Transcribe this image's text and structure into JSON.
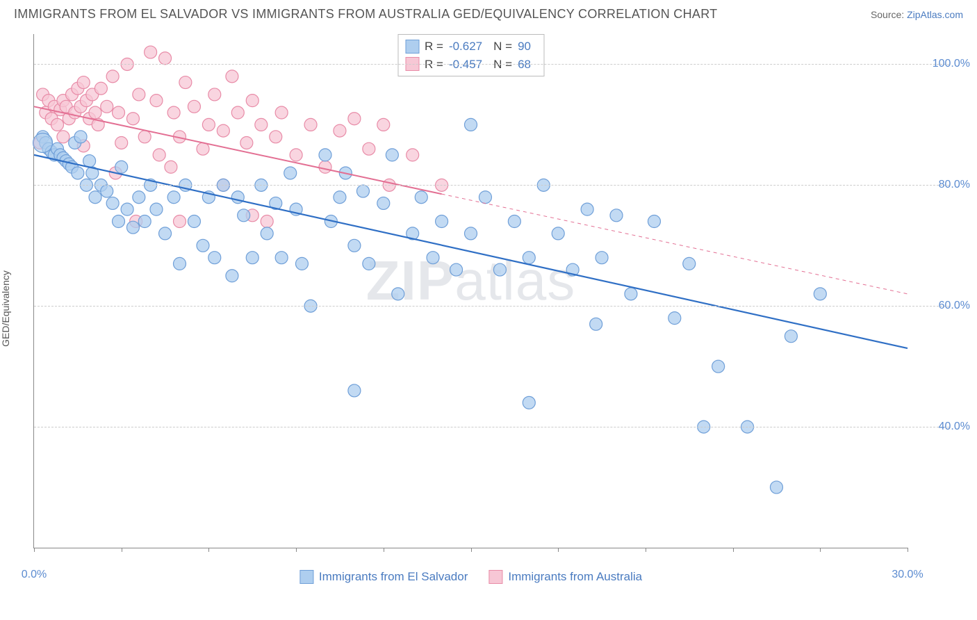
{
  "title": "IMMIGRANTS FROM EL SALVADOR VS IMMIGRANTS FROM AUSTRALIA GED/EQUIVALENCY CORRELATION CHART",
  "source_prefix": "Source: ",
  "source_name": "ZipAtlas.com",
  "y_axis_label": "GED/Equivalency",
  "watermark_bold": "ZIP",
  "watermark_rest": "atlas",
  "chart": {
    "type": "scatter",
    "xlim": [
      0,
      30
    ],
    "ylim": [
      20,
      105
    ],
    "x_ticks": [
      0,
      3,
      6,
      9,
      12,
      15,
      18,
      21,
      24,
      27,
      30
    ],
    "x_tick_labels": {
      "0": "0.0%",
      "30": "30.0%"
    },
    "y_ticks": [
      40,
      60,
      80,
      100
    ],
    "y_tick_labels": {
      "40": "40.0%",
      "60": "60.0%",
      "80": "80.0%",
      "100": "100.0%"
    },
    "background_color": "#ffffff",
    "grid_color": "#cccccc",
    "axis_color": "#888888",
    "marker_radius": 9,
    "marker_stroke_width": 1.2,
    "series": [
      {
        "id": "el_salvador",
        "label": "Immigrants from El Salvador",
        "fill_color": "#aeceef",
        "stroke_color": "#6f9fd8",
        "line_color": "#2f6fc5",
        "line_width": 2.2,
        "R": "-0.627",
        "N": "90",
        "trend": {
          "x1": 0,
          "y1": 85,
          "x2": 30,
          "y2": 53,
          "dash_from_x": null
        },
        "points": [
          [
            0.3,
            88
          ],
          [
            0.4,
            87
          ],
          [
            0.5,
            86
          ],
          [
            0.6,
            85.5
          ],
          [
            0.7,
            85
          ],
          [
            0.8,
            86
          ],
          [
            0.9,
            85
          ],
          [
            1.0,
            84.5
          ],
          [
            1.1,
            84
          ],
          [
            1.2,
            83.5
          ],
          [
            1.3,
            83
          ],
          [
            1.4,
            87
          ],
          [
            1.5,
            82
          ],
          [
            1.6,
            88
          ],
          [
            1.8,
            80
          ],
          [
            1.9,
            84
          ],
          [
            2.0,
            82
          ],
          [
            2.1,
            78
          ],
          [
            2.3,
            80
          ],
          [
            2.5,
            79
          ],
          [
            2.7,
            77
          ],
          [
            2.9,
            74
          ],
          [
            3.0,
            83
          ],
          [
            3.2,
            76
          ],
          [
            3.4,
            73
          ],
          [
            3.6,
            78
          ],
          [
            3.8,
            74
          ],
          [
            4.0,
            80
          ],
          [
            4.2,
            76
          ],
          [
            4.5,
            72
          ],
          [
            4.8,
            78
          ],
          [
            5.0,
            67
          ],
          [
            5.2,
            80
          ],
          [
            5.5,
            74
          ],
          [
            5.8,
            70
          ],
          [
            6.0,
            78
          ],
          [
            6.2,
            68
          ],
          [
            6.5,
            80
          ],
          [
            6.8,
            65
          ],
          [
            7.0,
            78
          ],
          [
            7.2,
            75
          ],
          [
            7.5,
            68
          ],
          [
            7.8,
            80
          ],
          [
            8.0,
            72
          ],
          [
            8.3,
            77
          ],
          [
            8.5,
            68
          ],
          [
            8.8,
            82
          ],
          [
            9.0,
            76
          ],
          [
            9.2,
            67
          ],
          [
            9.5,
            60
          ],
          [
            10.0,
            85
          ],
          [
            10.2,
            74
          ],
          [
            10.5,
            78
          ],
          [
            10.7,
            82
          ],
          [
            11.0,
            70
          ],
          [
            11.3,
            79
          ],
          [
            11.5,
            67
          ],
          [
            12.0,
            77
          ],
          [
            12.3,
            85
          ],
          [
            12.5,
            62
          ],
          [
            11.0,
            46
          ],
          [
            13.0,
            72
          ],
          [
            13.3,
            78
          ],
          [
            13.7,
            68
          ],
          [
            14.0,
            74
          ],
          [
            14.5,
            66
          ],
          [
            15.0,
            90
          ],
          [
            15.0,
            72
          ],
          [
            15.5,
            78
          ],
          [
            16.0,
            66
          ],
          [
            16.5,
            74
          ],
          [
            17.0,
            68
          ],
          [
            17.0,
            44
          ],
          [
            17.5,
            80
          ],
          [
            18.0,
            72
          ],
          [
            18.5,
            66
          ],
          [
            19.0,
            76
          ],
          [
            19.3,
            57
          ],
          [
            19.5,
            68
          ],
          [
            20.0,
            75
          ],
          [
            20.5,
            62
          ],
          [
            21.3,
            74
          ],
          [
            22.0,
            58
          ],
          [
            22.5,
            67
          ],
          [
            23.0,
            40
          ],
          [
            23.5,
            50
          ],
          [
            24.5,
            40
          ],
          [
            25.5,
            30
          ],
          [
            26.0,
            55
          ],
          [
            27.0,
            62
          ]
        ]
      },
      {
        "id": "australia",
        "label": "Immigrants from Australia",
        "fill_color": "#f7c7d5",
        "stroke_color": "#e88ba7",
        "line_color": "#e36f93",
        "line_width": 2.0,
        "R": "-0.457",
        "N": "68",
        "trend": {
          "x1": 0,
          "y1": 93,
          "x2": 30,
          "y2": 62,
          "dash_from_x": 14
        },
        "points": [
          [
            0.2,
            87
          ],
          [
            0.3,
            95
          ],
          [
            0.4,
            92
          ],
          [
            0.5,
            94
          ],
          [
            0.6,
            91
          ],
          [
            0.7,
            93
          ],
          [
            0.8,
            90
          ],
          [
            0.9,
            92.5
          ],
          [
            1.0,
            94
          ],
          [
            1.1,
            93
          ],
          [
            1.2,
            91
          ],
          [
            1.3,
            95
          ],
          [
            1.4,
            92
          ],
          [
            1.5,
            96
          ],
          [
            1.6,
            93
          ],
          [
            1.7,
            97
          ],
          [
            1.8,
            94
          ],
          [
            1.9,
            91
          ],
          [
            2.0,
            95
          ],
          [
            2.1,
            92
          ],
          [
            2.2,
            90
          ],
          [
            2.3,
            96
          ],
          [
            2.5,
            93
          ],
          [
            2.7,
            98
          ],
          [
            2.9,
            92
          ],
          [
            3.0,
            87
          ],
          [
            3.2,
            100
          ],
          [
            3.4,
            91
          ],
          [
            3.6,
            95
          ],
          [
            3.8,
            88
          ],
          [
            4.0,
            102
          ],
          [
            4.2,
            94
          ],
          [
            4.3,
            85
          ],
          [
            4.5,
            101
          ],
          [
            4.8,
            92
          ],
          [
            5.0,
            88
          ],
          [
            5.2,
            97
          ],
          [
            5.5,
            93
          ],
          [
            5.8,
            86
          ],
          [
            6.0,
            90
          ],
          [
            6.2,
            95
          ],
          [
            6.5,
            89
          ],
          [
            6.8,
            98
          ],
          [
            7.0,
            92
          ],
          [
            6.5,
            80
          ],
          [
            7.3,
            87
          ],
          [
            7.5,
            94
          ],
          [
            7.5,
            75
          ],
          [
            7.8,
            90
          ],
          [
            8.0,
            74
          ],
          [
            8.3,
            88
          ],
          [
            8.5,
            92
          ],
          [
            9.0,
            85
          ],
          [
            9.5,
            90
          ],
          [
            10.0,
            83
          ],
          [
            10.5,
            89
          ],
          [
            11.0,
            91
          ],
          [
            11.5,
            86
          ],
          [
            12.0,
            90
          ],
          [
            12.2,
            80
          ],
          [
            13.0,
            85
          ],
          [
            14.0,
            80
          ],
          [
            3.5,
            74
          ],
          [
            5.0,
            74
          ],
          [
            2.8,
            82
          ],
          [
            1.0,
            88
          ],
          [
            1.7,
            86.5
          ],
          [
            4.7,
            83
          ]
        ]
      }
    ]
  },
  "stats_legend_labels": {
    "R": "R =",
    "N": "N ="
  }
}
